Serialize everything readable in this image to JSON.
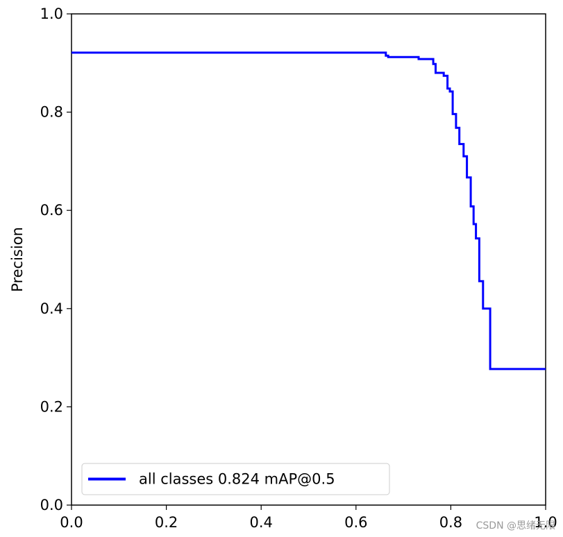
{
  "chart_data": {
    "type": "line",
    "title": "",
    "xlabel": "",
    "ylabel": "Precision",
    "xlim": [
      0,
      1
    ],
    "ylim": [
      0,
      1
    ],
    "xticks": [
      "0.0",
      "0.2",
      "0.4",
      "0.6",
      "0.8",
      "1.0"
    ],
    "yticks": [
      "0.0",
      "0.2",
      "0.4",
      "0.6",
      "0.8",
      "1.0"
    ],
    "grid": false,
    "legend_position": "lower left",
    "series": [
      {
        "name": "all classes 0.824 mAP@0.5",
        "color": "#0000ff",
        "x": [
          0.0,
          0.663,
          0.663,
          0.668,
          0.668,
          0.732,
          0.732,
          0.763,
          0.763,
          0.768,
          0.768,
          0.785,
          0.785,
          0.793,
          0.793,
          0.798,
          0.798,
          0.804,
          0.804,
          0.811,
          0.811,
          0.818,
          0.818,
          0.827,
          0.827,
          0.834,
          0.834,
          0.842,
          0.842,
          0.848,
          0.848,
          0.853,
          0.853,
          0.86,
          0.86,
          0.868,
          0.868,
          0.871,
          0.871,
          0.877,
          0.877,
          0.883,
          0.883,
          0.886,
          0.886,
          1.0
        ],
        "y": [
          0.921,
          0.921,
          0.915,
          0.915,
          0.912,
          0.912,
          0.908,
          0.908,
          0.898,
          0.898,
          0.88,
          0.88,
          0.874,
          0.874,
          0.848,
          0.848,
          0.842,
          0.842,
          0.796,
          0.796,
          0.768,
          0.768,
          0.735,
          0.735,
          0.71,
          0.71,
          0.667,
          0.667,
          0.608,
          0.608,
          0.572,
          0.572,
          0.543,
          0.543,
          0.456,
          0.456,
          0.4,
          0.4,
          0.4,
          0.4,
          0.4,
          0.4,
          0.277,
          0.277,
          0.277,
          0.277
        ]
      }
    ]
  },
  "watermark": "CSDN @思绪无限"
}
